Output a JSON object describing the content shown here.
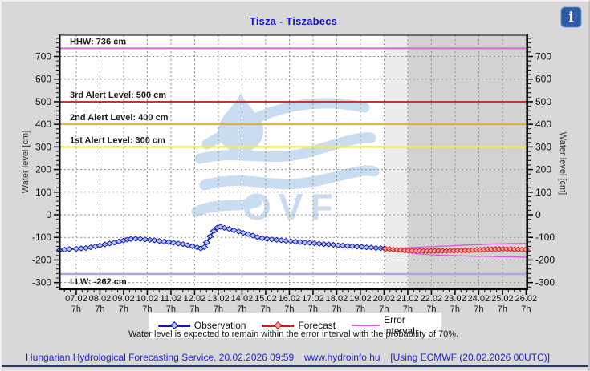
{
  "title": "Tisza - Tiszabecs",
  "info_icon": "i",
  "watermark": "OVF",
  "axes": {
    "y_label_left": "Water level [cm]",
    "y_label_right": "Water level [cm]",
    "y_ticks": [
      700,
      600,
      500,
      400,
      300,
      200,
      100,
      0,
      -100,
      -200,
      -300
    ],
    "x_ticks": [
      {
        "date": "07.02",
        "hour": "7h",
        "day": 7.29
      },
      {
        "date": "08.02",
        "hour": "7h",
        "day": 8.29
      },
      {
        "date": "09.02",
        "hour": "7h",
        "day": 9.29
      },
      {
        "date": "10.02",
        "hour": "7h",
        "day": 10.29
      },
      {
        "date": "11.02",
        "hour": "7h",
        "day": 11.29
      },
      {
        "date": "12.02",
        "hour": "7h",
        "day": 12.29
      },
      {
        "date": "13.02",
        "hour": "7h",
        "day": 13.29
      },
      {
        "date": "14.02",
        "hour": "7h",
        "day": 14.29
      },
      {
        "date": "15.02",
        "hour": "7h",
        "day": 15.29
      },
      {
        "date": "16.02",
        "hour": "7h",
        "day": 16.29
      },
      {
        "date": "17.02",
        "hour": "7h",
        "day": 17.29
      },
      {
        "date": "18.02",
        "hour": "7h",
        "day": 18.29
      },
      {
        "date": "19.02",
        "hour": "7h",
        "day": 19.29
      },
      {
        "date": "20.02",
        "hour": "7h",
        "day": 20.29
      },
      {
        "date": "21.02",
        "hour": "7h",
        "day": 21.29
      },
      {
        "date": "22.02",
        "hour": "7h",
        "day": 22.29
      },
      {
        "date": "23.02",
        "hour": "7h",
        "day": 23.29
      },
      {
        "date": "24.02",
        "hour": "7h",
        "day": 24.29
      },
      {
        "date": "25.02",
        "hour": "7h",
        "day": 25.29
      },
      {
        "date": "26.02",
        "hour": "7h",
        "day": 26.29
      }
    ]
  },
  "chart_data": {
    "type": "line",
    "title": "Tisza - Tiszabecs",
    "ylabel": "Water level [cm]",
    "x_domain": [
      6.614,
      26.31
    ],
    "y_domain": [
      -326,
      794
    ],
    "grid": true,
    "shading": [
      {
        "from": 20.31,
        "to": 21.2917,
        "color": "#ececec"
      },
      {
        "from": 21.2917,
        "to": 26.31,
        "color": "#d2d2d2"
      }
    ],
    "reference_lines": [
      {
        "label": "HHW: 736 cm",
        "value": 736,
        "color": "#d667d6",
        "width": 2,
        "label_position": "above"
      },
      {
        "label": "3rd Alert Level: 500 cm",
        "value": 500,
        "color": "#c03535",
        "width": 2,
        "label_position": "above"
      },
      {
        "label": "2nd Alert Level: 400 cm",
        "value": 400,
        "color": "#e9a93e",
        "width": 2,
        "label_position": "above"
      },
      {
        "label": "1st Alert Level: 300 cm",
        "value": 300,
        "color": "#ecec70",
        "width": 2.5,
        "label_position": "above"
      },
      {
        "label": "LLW: -262 cm",
        "value": -262,
        "color": "#a9aade",
        "width": 2.5,
        "label_position": "below"
      }
    ],
    "observation": {
      "name": "Observation",
      "color": "#1515b8",
      "marker_fill": "#a9c7e9",
      "points": [
        [
          6.61,
          -155
        ],
        [
          6.8,
          -154
        ],
        [
          7.0,
          -152
        ],
        [
          7.29,
          -151
        ],
        [
          7.5,
          -149
        ],
        [
          7.7,
          -147
        ],
        [
          7.9,
          -144
        ],
        [
          8.1,
          -140
        ],
        [
          8.29,
          -136
        ],
        [
          8.5,
          -131
        ],
        [
          8.7,
          -127
        ],
        [
          8.9,
          -123
        ],
        [
          9.1,
          -118
        ],
        [
          9.29,
          -114
        ],
        [
          9.45,
          -110
        ],
        [
          9.6,
          -107
        ],
        [
          9.8,
          -106
        ],
        [
          10.0,
          -107
        ],
        [
          10.2,
          -109
        ],
        [
          10.4,
          -111
        ],
        [
          10.6,
          -113
        ],
        [
          10.8,
          -116
        ],
        [
          11.0,
          -119
        ],
        [
          11.2,
          -121
        ],
        [
          11.4,
          -124
        ],
        [
          11.6,
          -127
        ],
        [
          11.8,
          -130
        ],
        [
          12.0,
          -134
        ],
        [
          12.2,
          -139
        ],
        [
          12.4,
          -144
        ],
        [
          12.55,
          -149
        ],
        [
          12.7,
          -143
        ],
        [
          12.8,
          -122
        ],
        [
          12.95,
          -95
        ],
        [
          13.1,
          -72
        ],
        [
          13.25,
          -57
        ],
        [
          13.38,
          -53
        ],
        [
          13.55,
          -58
        ],
        [
          13.75,
          -63
        ],
        [
          13.95,
          -69
        ],
        [
          14.15,
          -74
        ],
        [
          14.35,
          -80
        ],
        [
          14.55,
          -86
        ],
        [
          14.75,
          -92
        ],
        [
          14.95,
          -99
        ],
        [
          15.15,
          -104
        ],
        [
          15.35,
          -107
        ],
        [
          15.55,
          -109
        ],
        [
          15.75,
          -111
        ],
        [
          15.95,
          -113
        ],
        [
          16.15,
          -115
        ],
        [
          16.35,
          -117
        ],
        [
          16.55,
          -119
        ],
        [
          16.75,
          -121
        ],
        [
          16.95,
          -123
        ],
        [
          17.15,
          -124
        ],
        [
          17.35,
          -126
        ],
        [
          17.55,
          -128
        ],
        [
          17.75,
          -130
        ],
        [
          17.95,
          -131
        ],
        [
          18.15,
          -133
        ],
        [
          18.35,
          -135
        ],
        [
          18.55,
          -136
        ],
        [
          18.75,
          -138
        ],
        [
          18.95,
          -139
        ],
        [
          19.15,
          -141
        ],
        [
          19.35,
          -142
        ],
        [
          19.55,
          -144
        ],
        [
          19.75,
          -145
        ],
        [
          19.95,
          -147
        ],
        [
          20.15,
          -148
        ],
        [
          20.31,
          -149
        ]
      ]
    },
    "forecast": {
      "name": "Forecast",
      "color": "#d01818",
      "marker_fill": "#f2aaaa",
      "points": [
        [
          20.36,
          -151
        ],
        [
          20.52,
          -152
        ],
        [
          20.68,
          -154
        ],
        [
          20.84,
          -155
        ],
        [
          21.0,
          -156
        ],
        [
          21.16,
          -157
        ],
        [
          21.32,
          -158
        ],
        [
          21.48,
          -158
        ],
        [
          21.64,
          -159
        ],
        [
          21.8,
          -159
        ],
        [
          21.96,
          -160
        ],
        [
          22.12,
          -160
        ],
        [
          22.28,
          -160
        ],
        [
          22.44,
          -160
        ],
        [
          22.6,
          -160
        ],
        [
          22.76,
          -160
        ],
        [
          22.92,
          -160
        ],
        [
          23.08,
          -159
        ],
        [
          23.24,
          -159
        ],
        [
          23.4,
          -158
        ],
        [
          23.56,
          -158
        ],
        [
          23.72,
          -157
        ],
        [
          23.88,
          -157
        ],
        [
          24.04,
          -156
        ],
        [
          24.2,
          -155
        ],
        [
          24.36,
          -155
        ],
        [
          24.52,
          -154
        ],
        [
          24.68,
          -153
        ],
        [
          24.84,
          -153
        ],
        [
          25.0,
          -152
        ],
        [
          25.16,
          -152
        ],
        [
          25.32,
          -151
        ],
        [
          25.48,
          -152
        ],
        [
          25.64,
          -152
        ],
        [
          25.8,
          -153
        ],
        [
          25.96,
          -153
        ],
        [
          26.12,
          -154
        ],
        [
          26.28,
          -154
        ]
      ]
    },
    "error_color": "#df55df",
    "error_upper": [
      [
        20.36,
        -149
      ],
      [
        20.7,
        -148
      ],
      [
        21.0,
        -147
      ],
      [
        21.33,
        -146
      ],
      [
        21.7,
        -144
      ],
      [
        22.0,
        -142
      ],
      [
        22.33,
        -141
      ],
      [
        22.7,
        -139
      ],
      [
        23.0,
        -138
      ],
      [
        23.33,
        -136
      ],
      [
        23.7,
        -134
      ],
      [
        24.0,
        -133
      ],
      [
        24.33,
        -132
      ],
      [
        24.7,
        -130
      ],
      [
        25.0,
        -129
      ],
      [
        25.33,
        -128
      ],
      [
        25.7,
        -127
      ],
      [
        26.0,
        -127
      ],
      [
        26.3,
        -126
      ]
    ],
    "error_lower": [
      [
        20.36,
        -153
      ],
      [
        20.7,
        -158
      ],
      [
        21.0,
        -163
      ],
      [
        21.33,
        -168
      ],
      [
        21.7,
        -172
      ],
      [
        22.0,
        -175
      ],
      [
        22.33,
        -177
      ],
      [
        22.7,
        -179
      ],
      [
        23.0,
        -180
      ],
      [
        23.33,
        -181
      ],
      [
        23.7,
        -182
      ],
      [
        24.0,
        -183
      ],
      [
        24.33,
        -184
      ],
      [
        24.7,
        -184
      ],
      [
        25.0,
        -185
      ],
      [
        25.33,
        -186
      ],
      [
        25.7,
        -186
      ],
      [
        26.0,
        -187
      ],
      [
        26.3,
        -188
      ]
    ]
  },
  "legend": [
    {
      "label": "Observation",
      "color": "#1515b8",
      "marker_fill": "#a9c7e9",
      "thick": true
    },
    {
      "label": "Forecast",
      "color": "#d01818",
      "marker_fill": "#f2aaaa",
      "thick": true
    },
    {
      "label": "Error interval",
      "color": "#df55df",
      "thick": false
    }
  ],
  "note": "Water level is expected to remain within the error interval with the probability of 70%.",
  "footer": {
    "left": "Hungarian Hydrological Forecasting Service, 20.02.2026 09:59",
    "center": "www.hydroinfo.hu",
    "right": "[Using ECMWF (20.02.2026  00UTC)]"
  }
}
